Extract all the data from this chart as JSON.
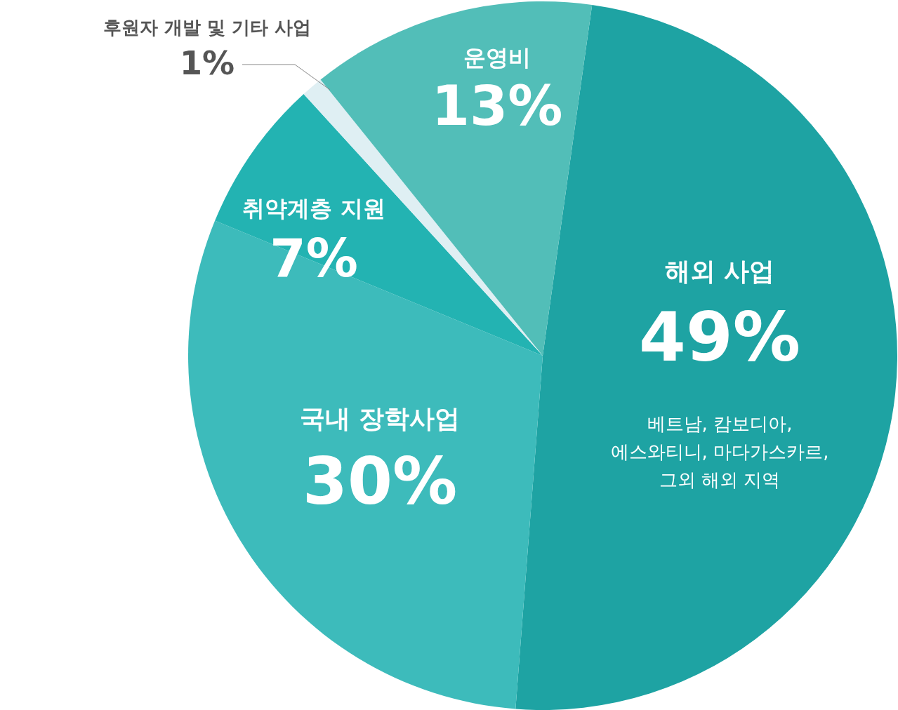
{
  "chart_data": {
    "type": "pie",
    "categories": [
      "해외 사업",
      "국내 장학사업",
      "취약계층 지원",
      "후원자 개발 및 기타 사업",
      "운영비"
    ],
    "values": [
      49,
      30,
      7,
      1,
      13
    ],
    "value_labels": [
      "49%",
      "30%",
      "7%",
      "1%",
      "13%"
    ],
    "colors": [
      "#1ea3a3",
      "#3dbbbb",
      "#23b3b2",
      "#dfeff3",
      "#52beb8"
    ],
    "annotations": [
      "베트남, 캄보디아,\n에스와티니, 마다가스카르,\n그외 해외 지역"
    ]
  }
}
